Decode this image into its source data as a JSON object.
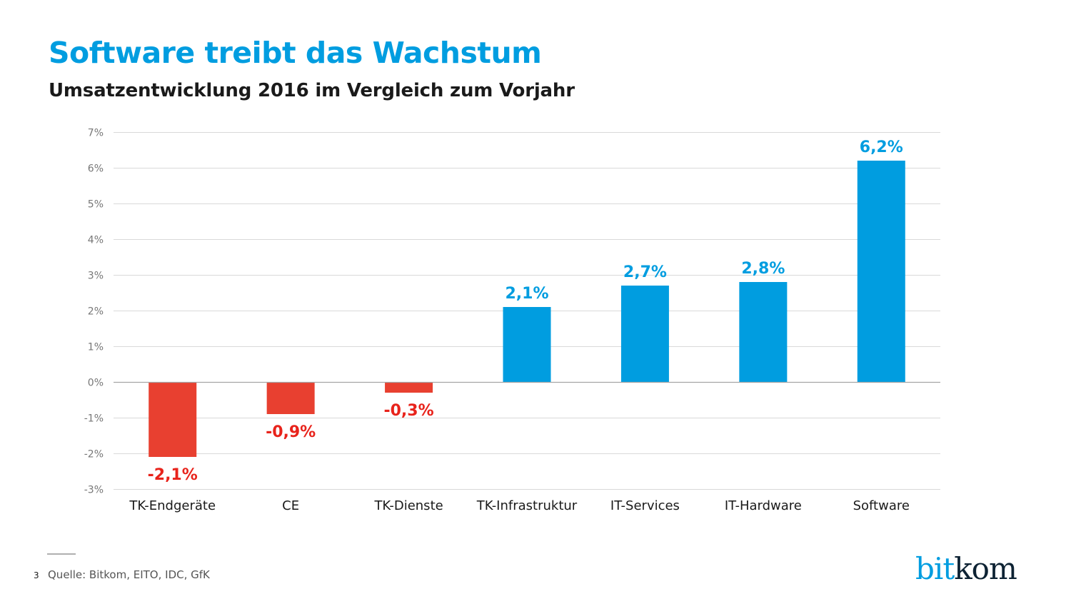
{
  "header": {
    "title": "Software treibt das Wachstum",
    "subtitle": "Umsatzentwicklung 2016 im Vergleich zum Vorjahr"
  },
  "chart_data": {
    "type": "bar",
    "title": "Software treibt das Wachstum",
    "subtitle": "Umsatzentwicklung 2016 im Vergleich zum Vorjahr",
    "xlabel": "",
    "ylabel": "",
    "categories": [
      "TK-Endgeräte",
      "CE",
      "TK-Dienste",
      "TK-Infrastruktur",
      "IT-Services",
      "IT-Hardware",
      "Software"
    ],
    "values": [
      -2.1,
      -0.9,
      -0.3,
      2.1,
      2.7,
      2.8,
      6.2
    ],
    "data_labels": [
      "-2,1%",
      "-0,9%",
      "-0,3%",
      "2,1%",
      "2,7%",
      "2,8%",
      "6,2%"
    ],
    "ylim": [
      -3,
      7
    ],
    "yticks": [
      7,
      6,
      5,
      4,
      3,
      2,
      1,
      0,
      -1,
      -2,
      -3
    ],
    "ytick_labels": [
      "7%",
      "6%",
      "5%",
      "4%",
      "3%",
      "2%",
      "1%",
      "0%",
      "-1%",
      "-2%",
      "-3%"
    ],
    "grid": true,
    "legend": "none",
    "colors": {
      "positive": "#009de0",
      "negative": "#e84030",
      "positive_label": "#009de0",
      "negative_label": "#e8231b",
      "grid": "#d9d9d9",
      "zero_line": "#a6a6a6"
    }
  },
  "footer": {
    "page_number": "3",
    "source": "Quelle: Bitkom, EITO, IDC, GfK"
  },
  "logo": {
    "part1": "bit",
    "part2": "kom",
    "colors": {
      "part1": "#009de0",
      "part2": "#0d2233"
    }
  }
}
